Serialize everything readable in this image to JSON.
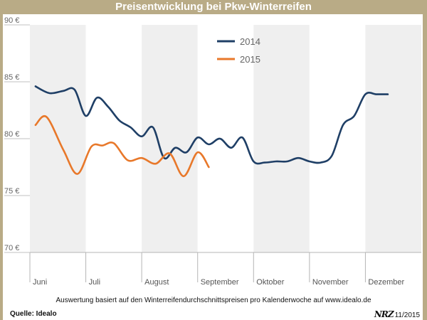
{
  "header": {
    "title": "Preisentwicklung bei Pkw-Winterreifen"
  },
  "footer": {
    "note": "Auswertung basiert auf den Winterreifendurchschnittspreisen pro Kalenderwoche auf www.idealo.de",
    "source": "Quelle: Idealo",
    "logo": "NRZ",
    "date": "11/2015"
  },
  "colors": {
    "series2014": "#1f3f66",
    "series2015": "#e8782a",
    "header": "#b9ab86"
  },
  "chart_data": {
    "type": "line",
    "title": "Preisentwicklung bei Pkw-Winterreifen",
    "ylim": [
      70,
      90
    ],
    "yticks": [
      90,
      85,
      80,
      75,
      70
    ],
    "ytick_labels": [
      "90 €",
      "85 €",
      "80 €",
      "75 €",
      "70 €"
    ],
    "xlim": [
      0,
      7
    ],
    "months": [
      "Juni",
      "Juli",
      "August",
      "September",
      "Oktober",
      "November",
      "Dezember"
    ],
    "grid": "alternating vertical bands per month",
    "legend_position": "top-center",
    "series": [
      {
        "name": "2014",
        "color": "#1f3f66",
        "x": [
          0.1,
          0.35,
          0.6,
          0.8,
          1.0,
          1.2,
          1.4,
          1.6,
          1.8,
          2.0,
          2.2,
          2.4,
          2.6,
          2.8,
          3.0,
          3.2,
          3.4,
          3.6,
          3.8,
          4.0,
          4.2,
          4.4,
          4.6,
          4.8,
          5.0,
          5.2,
          5.4,
          5.6,
          5.8,
          6.0,
          6.2,
          6.4
        ],
        "values": [
          84.6,
          84.0,
          84.2,
          84.3,
          82.0,
          83.6,
          82.8,
          81.6,
          81.0,
          80.2,
          81.0,
          78.3,
          79.2,
          78.8,
          80.1,
          79.5,
          80.0,
          79.2,
          80.1,
          78.0,
          77.9,
          78.0,
          78.0,
          78.3,
          78.0,
          77.9,
          78.5,
          81.2,
          82.0,
          83.9,
          83.9,
          83.9
        ]
      },
      {
        "name": "2015",
        "color": "#e8782a",
        "x": [
          0.1,
          0.3,
          0.6,
          0.85,
          1.1,
          1.3,
          1.5,
          1.75,
          2.0,
          2.25,
          2.5,
          2.75,
          3.0,
          3.2
        ],
        "values": [
          81.2,
          81.9,
          79.0,
          76.9,
          79.3,
          79.4,
          79.6,
          78.1,
          78.3,
          77.8,
          78.7,
          76.7,
          78.8,
          77.5
        ]
      }
    ]
  }
}
